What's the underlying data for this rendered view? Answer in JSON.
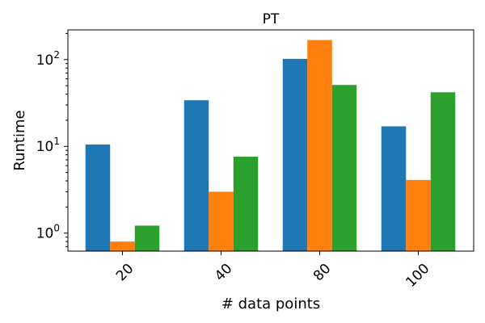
{
  "chart_data": {
    "type": "bar",
    "title": "PT",
    "xlabel": "# data points",
    "ylabel": "Runtime",
    "yscale": "log",
    "ylim": [
      0.62,
      220
    ],
    "categories": [
      "20",
      "40",
      "80",
      "100"
    ],
    "series": [
      {
        "color": "#1f77b4",
        "values": [
          10.5,
          34,
          102,
          17
        ]
      },
      {
        "color": "#ff7f0e",
        "values": [
          0.8,
          3.0,
          168,
          4.1
        ]
      },
      {
        "color": "#2ca02c",
        "values": [
          1.22,
          7.6,
          51,
          42
        ]
      }
    ],
    "yticks": [
      {
        "base": "10",
        "exp": "0",
        "value": 1
      },
      {
        "base": "10",
        "exp": "1",
        "value": 10
      },
      {
        "base": "10",
        "exp": "2",
        "value": 100
      }
    ],
    "grid": false,
    "legend": "none",
    "xtick_rotation": 45
  }
}
